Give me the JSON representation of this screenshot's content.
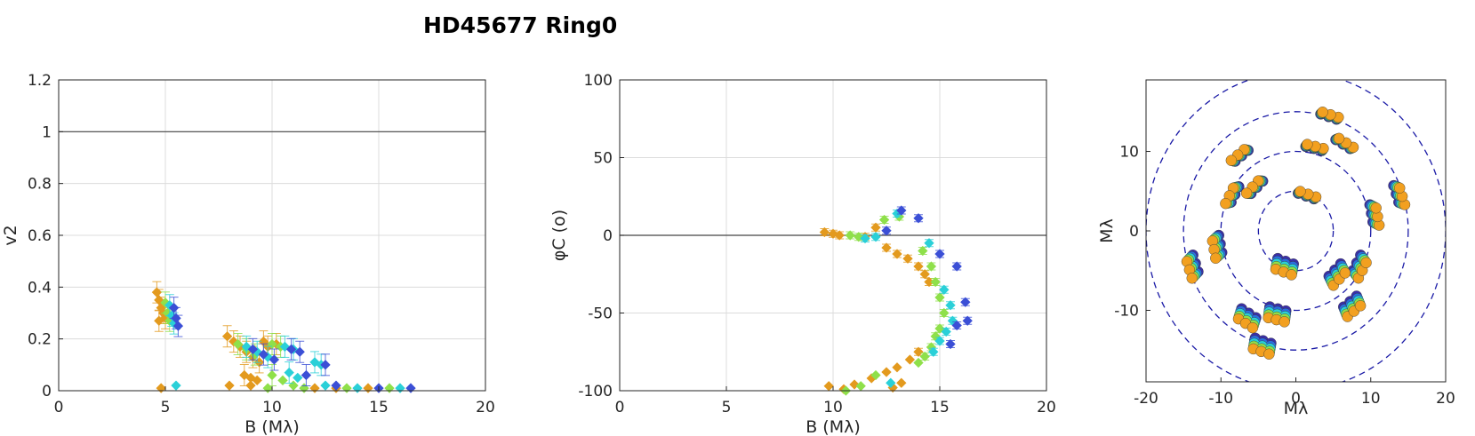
{
  "title": "HD45677  Ring0",
  "chart_data": [
    {
      "type": "scatter",
      "xlabel": "B (Mλ)",
      "ylabel": "v2",
      "xlim": [
        0,
        20
      ],
      "ylim": [
        0,
        1.2
      ],
      "xticks": [
        "0",
        "5",
        "10",
        "15",
        "20"
      ],
      "yticks": [
        "0",
        "0.2",
        "0.4",
        "0.6",
        "0.8",
        "1",
        "1.2"
      ],
      "grid": true,
      "reference_line": 1,
      "series": [
        {
          "color": "#e39a1e",
          "points": [
            [
              4.6,
              0.38
            ],
            [
              4.7,
              0.35
            ],
            [
              4.8,
              0.32
            ],
            [
              4.9,
              0.3
            ],
            [
              5.0,
              0.28
            ],
            [
              4.7,
              0.27
            ],
            [
              4.8,
              0.01
            ],
            [
              7.9,
              0.21
            ],
            [
              8.2,
              0.19
            ],
            [
              8.5,
              0.17
            ],
            [
              8.8,
              0.15
            ],
            [
              9.1,
              0.13
            ],
            [
              9.4,
              0.11
            ],
            [
              8.7,
              0.06
            ],
            [
              9.0,
              0.05
            ],
            [
              9.3,
              0.04
            ],
            [
              9.0,
              0.02
            ],
            [
              8.0,
              0.02
            ],
            [
              9.6,
              0.19
            ],
            [
              9.8,
              0.17
            ],
            [
              10.2,
              0.18
            ],
            [
              12.0,
              0.01
            ],
            [
              13.0,
              0.01
            ],
            [
              14.5,
              0.01
            ]
          ]
        },
        {
          "color": "#8fe04a",
          "points": [
            [
              5.0,
              0.34
            ],
            [
              5.1,
              0.3
            ],
            [
              5.2,
              0.27
            ],
            [
              8.4,
              0.18
            ],
            [
              8.8,
              0.16
            ],
            [
              9.2,
              0.14
            ],
            [
              10.0,
              0.18
            ],
            [
              10.4,
              0.17
            ],
            [
              10.0,
              0.06
            ],
            [
              10.5,
              0.04
            ],
            [
              11.0,
              0.02
            ],
            [
              9.8,
              0.01
            ],
            [
              11.5,
              0.01
            ],
            [
              13.5,
              0.01
            ],
            [
              15.5,
              0.01
            ]
          ]
        },
        {
          "color": "#2ad0d8",
          "points": [
            [
              5.2,
              0.33
            ],
            [
              5.3,
              0.29
            ],
            [
              5.4,
              0.26
            ],
            [
              5.5,
              0.02
            ],
            [
              8.8,
              0.17
            ],
            [
              9.3,
              0.15
            ],
            [
              9.8,
              0.13
            ],
            [
              10.6,
              0.17
            ],
            [
              11.0,
              0.16
            ],
            [
              10.8,
              0.07
            ],
            [
              11.2,
              0.05
            ],
            [
              12.0,
              0.11
            ],
            [
              12.3,
              0.1
            ],
            [
              12.5,
              0.02
            ],
            [
              14.0,
              0.01
            ],
            [
              16.0,
              0.01
            ]
          ]
        },
        {
          "color": "#3b4fd6",
          "points": [
            [
              5.4,
              0.32
            ],
            [
              5.5,
              0.28
            ],
            [
              5.6,
              0.25
            ],
            [
              9.1,
              0.16
            ],
            [
              9.6,
              0.14
            ],
            [
              10.1,
              0.12
            ],
            [
              10.9,
              0.16
            ],
            [
              11.3,
              0.15
            ],
            [
              11.6,
              0.06
            ],
            [
              12.5,
              0.1
            ],
            [
              13.0,
              0.02
            ],
            [
              15.0,
              0.01
            ],
            [
              16.5,
              0.01
            ]
          ]
        }
      ]
    },
    {
      "type": "scatter",
      "xlabel": "B (Mλ)",
      "ylabel": "φC (o)",
      "xlim": [
        0,
        20
      ],
      "ylim": [
        -100,
        100
      ],
      "xticks": [
        "0",
        "5",
        "10",
        "15",
        "20"
      ],
      "yticks": [
        "-100",
        "-50",
        "0",
        "50",
        "100"
      ],
      "grid": true,
      "reference_line": 0,
      "series": [
        {
          "color": "#e39a1e",
          "points": [
            [
              9.6,
              2
            ],
            [
              10.0,
              1
            ],
            [
              10.3,
              0
            ],
            [
              11.5,
              -1
            ],
            [
              12.0,
              5
            ],
            [
              12.5,
              -8
            ],
            [
              13.0,
              -12
            ],
            [
              13.5,
              -15
            ],
            [
              14.0,
              -20
            ],
            [
              14.3,
              -25
            ],
            [
              14.5,
              -30
            ],
            [
              9.8,
              -97
            ],
            [
              10.5,
              -99
            ],
            [
              11.0,
              -96
            ],
            [
              11.8,
              -92
            ],
            [
              12.5,
              -88
            ],
            [
              13.0,
              -85
            ],
            [
              13.6,
              -80
            ],
            [
              14.0,
              -75
            ],
            [
              13.2,
              -95
            ],
            [
              12.8,
              -98
            ]
          ]
        },
        {
          "color": "#8fe04a",
          "points": [
            [
              10.8,
              0
            ],
            [
              11.2,
              -1
            ],
            [
              12.4,
              10
            ],
            [
              13.1,
              12
            ],
            [
              14.2,
              -10
            ],
            [
              14.6,
              -20
            ],
            [
              14.8,
              -30
            ],
            [
              15.0,
              -40
            ],
            [
              15.2,
              -50
            ],
            [
              15.0,
              -60
            ],
            [
              14.8,
              -65
            ],
            [
              14.6,
              -72
            ],
            [
              14.3,
              -78
            ],
            [
              14.0,
              -82
            ],
            [
              12.0,
              -90
            ],
            [
              11.3,
              -97
            ],
            [
              10.6,
              -100
            ]
          ]
        },
        {
          "color": "#2ad0d8",
          "points": [
            [
              11.5,
              -2
            ],
            [
              12.0,
              -1
            ],
            [
              13.0,
              14
            ],
            [
              14.5,
              -5
            ],
            [
              15.2,
              -35
            ],
            [
              15.5,
              -45
            ],
            [
              15.6,
              -55
            ],
            [
              15.3,
              -62
            ],
            [
              15.0,
              -68
            ],
            [
              14.7,
              -75
            ],
            [
              12.7,
              -95
            ]
          ]
        },
        {
          "color": "#3b4fd6",
          "points": [
            [
              12.5,
              3
            ],
            [
              13.2,
              16
            ],
            [
              14.0,
              11
            ],
            [
              15.0,
              -12
            ],
            [
              15.8,
              -20
            ],
            [
              16.2,
              -43
            ],
            [
              16.3,
              -55
            ],
            [
              15.8,
              -58
            ],
            [
              15.5,
              -70
            ]
          ]
        }
      ]
    },
    {
      "type": "scatter",
      "xlabel": "Mλ",
      "ylabel": "Mλ",
      "xlim": [
        -20,
        20
      ],
      "ylim": [
        -19,
        19
      ],
      "xticks": [
        "-20",
        "-10",
        "0",
        "10",
        "20"
      ],
      "yticks": [
        "-10",
        "0",
        "10"
      ],
      "grid": false,
      "circle_radii": [
        5,
        10,
        15,
        20
      ],
      "clusters": [
        [
          4.5,
          14.5
        ],
        [
          -4.5,
          -14.5
        ],
        [
          10.5,
          2
        ],
        [
          -10.5,
          -2
        ],
        [
          6.5,
          11
        ],
        [
          -6.5,
          -11
        ],
        [
          2.5,
          10.5
        ],
        [
          -2.5,
          -10.5
        ],
        [
          -7.5,
          9.5
        ],
        [
          7.5,
          -9.5
        ],
        [
          -13.8,
          -4.5
        ],
        [
          13.8,
          4.5
        ],
        [
          -8.5,
          4.5
        ],
        [
          8.5,
          -4.5
        ],
        [
          -5.5,
          5.5
        ],
        [
          5.5,
          -5.5
        ],
        [
          1.5,
          4.5
        ],
        [
          -1.5,
          -4.5
        ]
      ],
      "cluster_colors": [
        "#3b2fa8",
        "#2b6ee0",
        "#2ad0d8",
        "#8fe04a",
        "#f2a020"
      ]
    }
  ]
}
